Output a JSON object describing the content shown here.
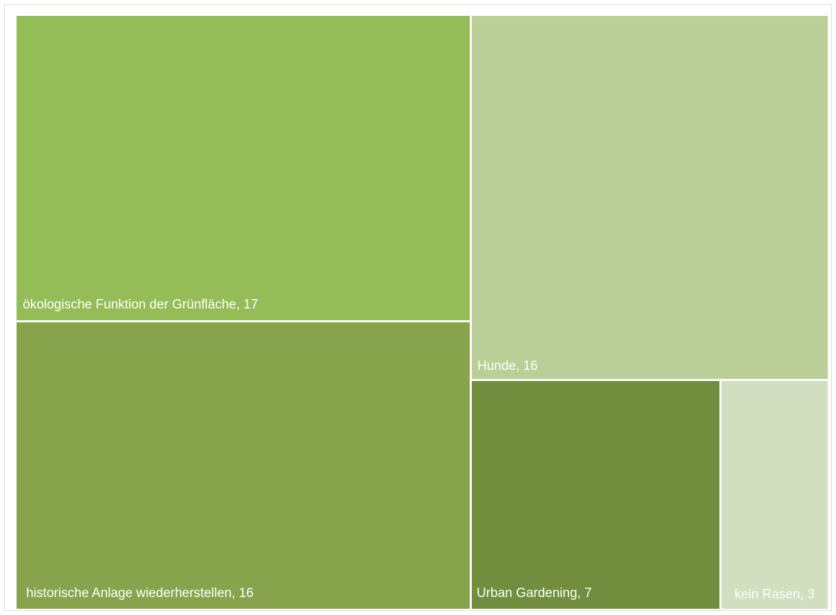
{
  "chart_data": {
    "type": "treemap",
    "items": [
      {
        "label": "ökologische Funktion der Grünfläche, 17",
        "name": "ökologische Funktion der Grünfläche",
        "value": 17,
        "color": "#94BC57"
      },
      {
        "label": "historische Anlage wiederherstellen, 16",
        "name": "historische Anlage wiederherstellen",
        "value": 16,
        "color": "#87A44D"
      },
      {
        "label": "Hunde, 16",
        "name": "Hunde",
        "value": 16,
        "color": "#BACE97"
      },
      {
        "label": "Urban Gardening, 7",
        "name": "Urban Gardening",
        "value": 7,
        "color": "#718D3E"
      },
      {
        "label": "kein Rasen, 3",
        "name": "kein Rasen",
        "value": 3,
        "color": "#D1DEBF"
      }
    ]
  },
  "colors": {
    "separator": "#ffffff",
    "label_text": "#ffffff",
    "frame_border": "#d9d9d9"
  }
}
